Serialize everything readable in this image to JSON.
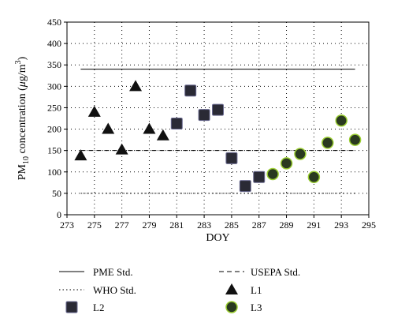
{
  "chart_data": {
    "type": "scatter",
    "title": "",
    "xlabel": "DOY",
    "ylabel_main": "PM",
    "ylabel_sub": "10",
    "ylabel_rest": " concentration (",
    "ylabel_unit_mu": "μ",
    "ylabel_unit_rest": "g/m",
    "ylabel_unit_sup": "3",
    "ylabel_close": ")",
    "xlim": [
      273,
      295
    ],
    "ylim": [
      0,
      450
    ],
    "xticks": [
      273,
      275,
      277,
      279,
      281,
      283,
      285,
      287,
      289,
      291,
      293,
      295
    ],
    "yticks": [
      0,
      50,
      100,
      150,
      200,
      250,
      300,
      350,
      400,
      450
    ],
    "grid": true,
    "reference_lines": [
      {
        "name": "PME Std.",
        "y": 340,
        "style": "solid",
        "x_range": [
          274,
          294
        ]
      },
      {
        "name": "USEPA Std.",
        "y": 150,
        "style": "dashed",
        "x_range": [
          274,
          294
        ]
      },
      {
        "name": "WHO Std.",
        "y": 50,
        "style": "dotted",
        "x_range": [
          274,
          294
        ]
      }
    ],
    "series": [
      {
        "name": "L1",
        "marker": "triangle",
        "color": "#111111",
        "points": [
          [
            274,
            138
          ],
          [
            275,
            240
          ],
          [
            276,
            200
          ],
          [
            277,
            152
          ],
          [
            278,
            300
          ],
          [
            279,
            200
          ],
          [
            280,
            185
          ]
        ]
      },
      {
        "name": "L2",
        "marker": "square",
        "color": "#2a2a35",
        "points": [
          [
            281,
            213
          ],
          [
            282,
            290
          ],
          [
            283,
            233
          ],
          [
            284,
            245
          ],
          [
            285,
            132
          ],
          [
            286,
            67
          ],
          [
            287,
            88
          ]
        ]
      },
      {
        "name": "L3",
        "marker": "circle",
        "color": "#2a3a20",
        "edge": "#9acd32",
        "points": [
          [
            288,
            95
          ],
          [
            289,
            120
          ],
          [
            290,
            142
          ],
          [
            291,
            88
          ],
          [
            292,
            168
          ],
          [
            293,
            220
          ],
          [
            294,
            175
          ]
        ]
      }
    ],
    "legend": {
      "placement": "bottom",
      "entries": [
        {
          "label": "PME Std.",
          "kind": "solid"
        },
        {
          "label": "USEPA Std.",
          "kind": "dashed"
        },
        {
          "label": "WHO Std.",
          "kind": "dotted"
        },
        {
          "label": "L1",
          "kind": "triangle"
        },
        {
          "label": "L2",
          "kind": "square"
        },
        {
          "label": "L3",
          "kind": "circle"
        }
      ]
    }
  }
}
